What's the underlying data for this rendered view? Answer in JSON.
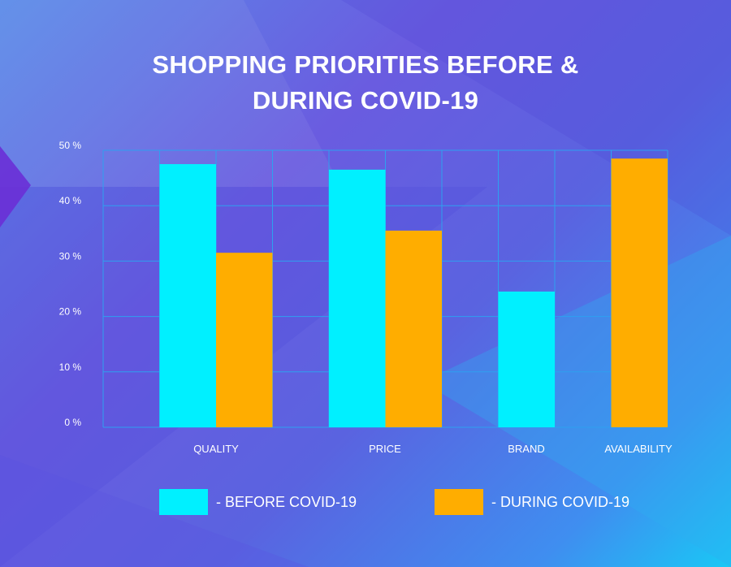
{
  "title_line1": "SHOPPING PRIORITIES BEFORE &",
  "title_line2": "DURING COVID-19",
  "colors": {
    "before": "#00f0ff",
    "during": "#ffad00",
    "grid": "#2ea0f0"
  },
  "chart_data": {
    "type": "bar",
    "title": "SHOPPING PRIORITIES BEFORE & DURING COVID-19",
    "categories": [
      "QUALITY",
      "PRICE",
      "BRAND",
      "AVAILABILITY"
    ],
    "series": [
      {
        "name": "- BEFORE COVID-19",
        "values": [
          47.5,
          46.5,
          24.5,
          null
        ]
      },
      {
        "name": "- DURING COVID-19",
        "values": [
          31.5,
          35.5,
          null,
          48.5
        ]
      }
    ],
    "yticks": [
      "0 %",
      "10 %",
      "20 %",
      "30 %",
      "40 %",
      "50 %"
    ],
    "ylim": [
      0,
      50
    ],
    "grid": true,
    "legend": "bottom"
  },
  "legend": {
    "before_label": "- BEFORE COVID-19",
    "during_label": "- DURING COVID-19"
  }
}
